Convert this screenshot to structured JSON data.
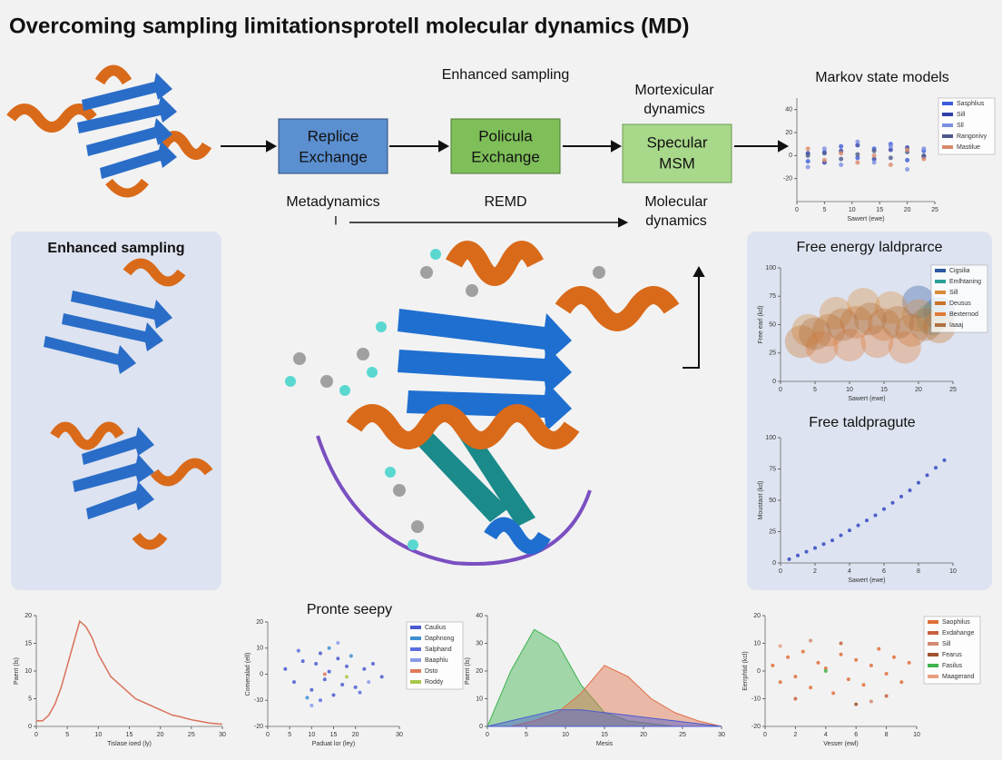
{
  "header": {
    "title": "Overcoming sampling limitationsprotell molecular dynamics (MD)"
  },
  "flow": {
    "heading": "Enhanced sampling",
    "steps": [
      {
        "lines": [
          "Replice",
          "Exchange"
        ]
      },
      {
        "lines": [
          "Policula",
          "Exchange"
        ]
      },
      {
        "lines": [
          "Specular",
          "MSM"
        ]
      }
    ],
    "upper_label": [
      "Mortexicular",
      "dynamics"
    ],
    "metadynamics": "Metadynamics",
    "marker": "I",
    "remd": "REMD",
    "lower_label": [
      "Molecular",
      "dynamics"
    ]
  },
  "left_panel": {
    "title": "Enhanced sampling"
  },
  "chart_data": [
    {
      "type": "scatter",
      "title": "Markov state models",
      "xlabel": "Sawert (ewe)",
      "xlim": [
        0,
        25
      ],
      "ylim": [
        -40,
        50
      ],
      "xticks": [
        0,
        5,
        10,
        15,
        20,
        25
      ],
      "yticks": [
        -20,
        0,
        20,
        40
      ],
      "series": [
        {
          "name": "Sasphlius",
          "color": "#3b5bdb",
          "x": [
            2,
            5,
            8,
            11,
            14,
            17,
            20,
            23
          ],
          "values": [
            -5,
            3,
            8,
            -2,
            6,
            10,
            -4,
            4
          ]
        },
        {
          "name": "Sill",
          "color": "#2f3fa8",
          "x": [
            2,
            5,
            8,
            11,
            14,
            17,
            20,
            23
          ],
          "values": [
            2,
            -6,
            4,
            9,
            -3,
            5,
            7,
            -1
          ]
        },
        {
          "name": "Sll",
          "color": "#7b8fe0",
          "x": [
            2,
            5,
            8,
            11,
            14,
            17,
            20,
            23
          ],
          "values": [
            -10,
            6,
            -8,
            12,
            -6,
            8,
            -12,
            6
          ]
        },
        {
          "name": "Rangonivy",
          "color": "#4c5a8a",
          "x": [
            2,
            5,
            8,
            11,
            14,
            17,
            20,
            23
          ],
          "values": [
            0,
            2,
            -3,
            1,
            4,
            -2,
            3,
            0
          ]
        },
        {
          "name": "Mastilue",
          "color": "#d98a6a",
          "x": [
            2,
            5,
            8,
            11,
            14,
            17,
            20,
            23
          ],
          "values": [
            6,
            -4,
            2,
            -6,
            0,
            -8,
            5,
            -3
          ]
        }
      ]
    },
    {
      "type": "scatter",
      "title": "Free energy laldprarce",
      "xlabel": "Sawert (ewe)",
      "ylabel": "Free earl (kd)",
      "xlim": [
        0,
        25
      ],
      "ylim": [
        0,
        100
      ],
      "xticks": [
        0,
        5,
        10,
        15,
        20,
        25
      ],
      "yticks": [
        0,
        25,
        50,
        75,
        100
      ],
      "series": [
        {
          "name": "Cigsilia",
          "color": "#2d5aa0",
          "x": [
            20,
            23
          ],
          "values": [
            70,
            60
          ]
        },
        {
          "name": "Emlhtaning",
          "color": "#2aa198",
          "x": [
            22
          ],
          "values": [
            55
          ]
        },
        {
          "name": "Sill",
          "color": "#d98b3a",
          "x": [
            4,
            8,
            12,
            16,
            20
          ],
          "values": [
            45,
            60,
            68,
            65,
            58
          ]
        },
        {
          "name": "Deusus",
          "color": "#c8742a",
          "x": [
            3,
            7,
            11,
            15,
            19,
            23
          ],
          "values": [
            35,
            45,
            52,
            50,
            45,
            48
          ]
        },
        {
          "name": "Bexternod",
          "color": "#e07a3a",
          "x": [
            6,
            10,
            14,
            18
          ],
          "values": [
            30,
            32,
            35,
            30
          ]
        },
        {
          "name": "Iaaaj",
          "color": "#b07040",
          "x": [
            5,
            9,
            13,
            17,
            21
          ],
          "values": [
            42,
            50,
            55,
            52,
            50
          ]
        }
      ]
    },
    {
      "type": "scatter",
      "title": "Free taldpragute",
      "xlabel": "Sawert (ewe)",
      "ylabel": "Moustaot (kd)",
      "xlim": [
        0,
        10
      ],
      "ylim": [
        0,
        100
      ],
      "xticks": [
        0,
        2,
        4,
        6,
        8,
        10
      ],
      "yticks": [
        0,
        25,
        50,
        75,
        100
      ],
      "color": "#3b4fc4",
      "x": [
        0.5,
        1,
        1.5,
        2,
        2.5,
        3,
        3.5,
        4,
        4.5,
        5,
        5.5,
        6,
        6.5,
        7,
        7.5,
        8,
        8.5,
        9,
        9.5
      ],
      "values": [
        3,
        6,
        9,
        12,
        15,
        18,
        22,
        26,
        30,
        34,
        38,
        43,
        48,
        53,
        58,
        64,
        70,
        76,
        82
      ]
    },
    {
      "type": "line",
      "xlabel": "Tislase ioed (ly)",
      "ylabel": "Paent (ls)",
      "color": "#d9705a",
      "xlim": [
        0,
        30
      ],
      "ylim": [
        0,
        20
      ],
      "xticks": [
        0,
        5,
        10,
        15,
        20,
        25,
        30
      ],
      "yticks": [
        0,
        5,
        10,
        15,
        20
      ],
      "x": [
        0,
        1,
        2,
        3,
        4,
        5,
        6,
        7,
        8,
        9,
        10,
        11,
        12,
        13,
        14,
        15,
        16,
        17,
        18,
        19,
        20,
        21,
        22,
        23,
        24,
        25,
        26,
        27,
        28,
        29,
        30
      ],
      "values": [
        1,
        1,
        2,
        4,
        7,
        11,
        15,
        19,
        18,
        16,
        13,
        11,
        9,
        8,
        7,
        6,
        5,
        4.5,
        4,
        3.5,
        3,
        2.5,
        2,
        1.8,
        1.5,
        1.2,
        1,
        0.8,
        0.6,
        0.5,
        0.4
      ]
    },
    {
      "type": "scatter",
      "title": "Pronte seepy",
      "xlabel": "Paduat lor (ley)",
      "ylabel": "Comeralad (ell)",
      "xlim": [
        0,
        30
      ],
      "ylim": [
        -20,
        20
      ],
      "xticks": [
        0,
        5,
        10,
        15,
        20,
        30
      ],
      "yticks": [
        -20,
        -10,
        0,
        10,
        20
      ],
      "series": [
        {
          "name": "Caulius",
          "color": "#4a5bd0",
          "x": [
            4,
            6,
            8,
            10,
            11,
            12,
            13,
            14,
            15,
            16,
            17,
            18,
            20,
            22,
            24,
            26
          ],
          "values": [
            2,
            -3,
            5,
            -6,
            4,
            8,
            -2,
            1,
            -8,
            6,
            -4,
            3,
            -5,
            2,
            4,
            -1
          ]
        },
        {
          "name": "Daphnong",
          "color": "#3f8fd0",
          "x": [
            9,
            14,
            19
          ],
          "values": [
            -9,
            10,
            7
          ]
        },
        {
          "name": "Salphand",
          "color": "#5a6ee0",
          "x": [
            7,
            12,
            21
          ],
          "values": [
            9,
            -10,
            -7
          ]
        },
        {
          "name": "Baaphlu",
          "color": "#8a9ae8",
          "x": [
            10,
            16,
            23
          ],
          "values": [
            -12,
            12,
            -3
          ]
        },
        {
          "name": "Dsto",
          "color": "#e07a5a",
          "x": [
            13
          ],
          "values": [
            0
          ]
        },
        {
          "name": "Roddy",
          "color": "#a8c84a",
          "x": [
            18
          ],
          "values": [
            -1
          ]
        }
      ]
    },
    {
      "type": "area",
      "xlabel": "Mesis",
      "ylabel": "Paent (ls)",
      "xlim": [
        0,
        30
      ],
      "ylim": [
        0,
        40
      ],
      "xticks": [
        0,
        5,
        10,
        15,
        20,
        25,
        30
      ],
      "yticks": [
        0,
        10,
        20,
        30,
        40
      ],
      "x": [
        0,
        3,
        6,
        9,
        12,
        15,
        18,
        21,
        24,
        27,
        30
      ],
      "series": [
        {
          "color": "#3fb34f",
          "values": [
            0,
            20,
            35,
            30,
            15,
            5,
            2,
            1,
            0,
            0,
            0
          ]
        },
        {
          "color": "#e0704a",
          "values": [
            0,
            0,
            2,
            5,
            12,
            22,
            18,
            10,
            5,
            2,
            0
          ]
        },
        {
          "color": "#4a5bd0",
          "values": [
            0,
            2,
            4,
            6,
            6,
            5,
            4,
            3,
            2,
            1,
            0
          ]
        }
      ]
    },
    {
      "type": "scatter",
      "xlabel": "Vesser (ewl)",
      "ylabel": "Eerrphtid (kcl)",
      "xlim": [
        0,
        10
      ],
      "ylim": [
        -20,
        20
      ],
      "xticks": [
        0,
        2,
        4,
        6,
        8,
        10
      ],
      "yticks": [
        -20,
        -10,
        0,
        10,
        20
      ],
      "series": [
        {
          "name": "Saophilus",
          "color": "#e0703a",
          "x": [
            0.5,
            1,
            1.5,
            2,
            2.5,
            3,
            3.5,
            4,
            4.5,
            5,
            5.5,
            6,
            6.5,
            7,
            7.5,
            8,
            8.5,
            9,
            9.5
          ],
          "values": [
            2,
            -4,
            5,
            -2,
            7,
            -6,
            3,
            1,
            -8,
            6,
            -3,
            4,
            -5,
            2,
            8,
            -1,
            5,
            -4,
            3
          ]
        },
        {
          "name": "Exdahange",
          "color": "#c86040",
          "x": [
            2,
            5,
            8
          ],
          "values": [
            -10,
            10,
            -9
          ]
        },
        {
          "name": "Sill",
          "color": "#d08a70",
          "x": [
            3,
            7
          ],
          "values": [
            11,
            -11
          ]
        },
        {
          "name": "Fearus",
          "color": "#a0522d",
          "x": [
            6
          ],
          "values": [
            -12
          ]
        },
        {
          "name": "Fasilus",
          "color": "#3fb34f",
          "x": [
            4
          ],
          "values": [
            0
          ]
        },
        {
          "name": "Maagerand",
          "color": "#e8a080",
          "x": [
            1
          ],
          "values": [
            9
          ]
        }
      ]
    }
  ]
}
